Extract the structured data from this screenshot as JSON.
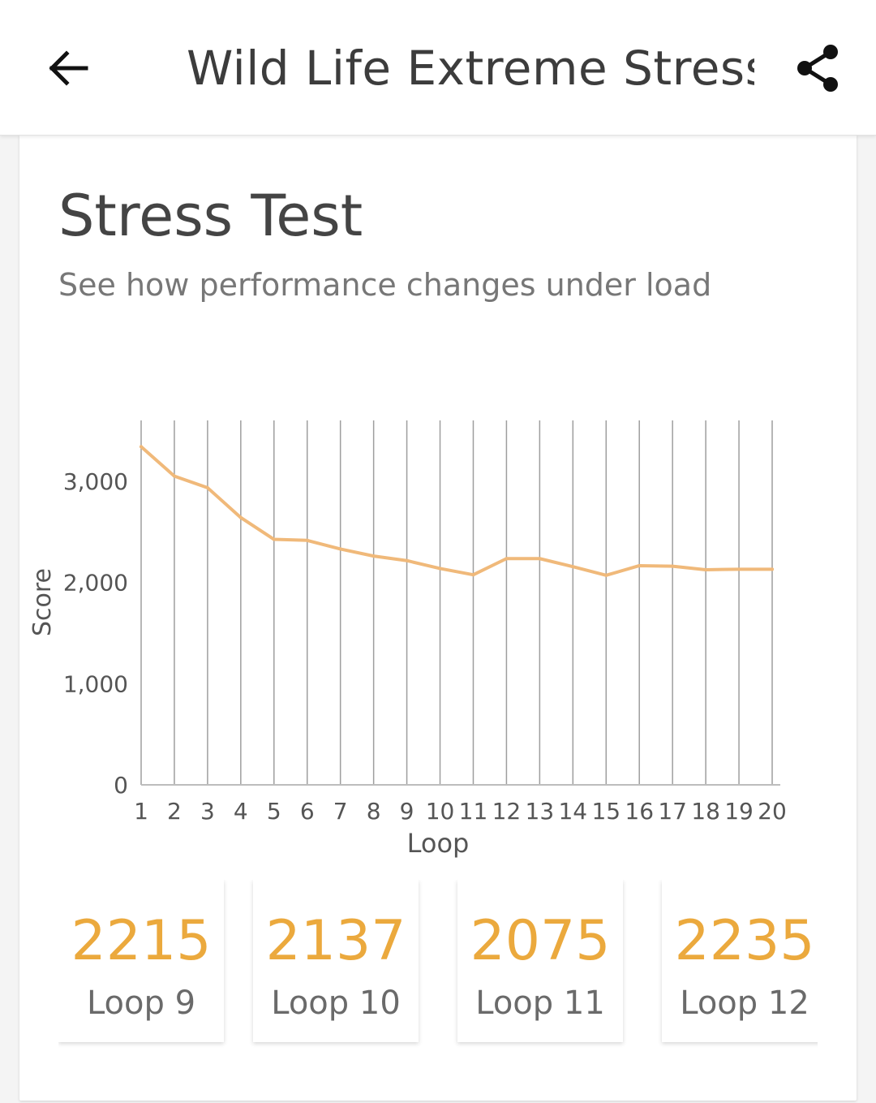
{
  "header": {
    "title": "Wild Life Extreme Stress...",
    "back_icon": "back-arrow-icon",
    "share_icon": "share-icon"
  },
  "card": {
    "title": "Stress Test",
    "subtitle": "See how performance changes under load"
  },
  "colors": {
    "line": "#f0b97a",
    "accent": "#eba93d",
    "grid": "#9e9e9e"
  },
  "chart_data": {
    "type": "line",
    "xlabel": "Loop",
    "ylabel": "Score",
    "x": [
      1,
      2,
      3,
      4,
      5,
      6,
      7,
      8,
      9,
      10,
      11,
      12,
      13,
      14,
      15,
      16,
      17,
      18,
      19,
      20
    ],
    "series": [
      {
        "values": [
          3340,
          3050,
          2935,
          2640,
          2425,
          2415,
          2330,
          2260,
          2215,
          2137,
          2075,
          2235,
          2235,
          2155,
          2070,
          2165,
          2160,
          2125,
          2130,
          2130
        ]
      }
    ],
    "ylim": [
      0,
      3600
    ],
    "yticks": [
      0,
      1000,
      2000,
      3000
    ],
    "ytick_labels": [
      "0",
      "1,000",
      "2,000",
      "3,000"
    ],
    "grid": "vertical"
  },
  "loops": [
    {
      "score": "2215",
      "label": "Loop 9"
    },
    {
      "score": "2137",
      "label": "Loop 10"
    },
    {
      "score": "2075",
      "label": "Loop 11"
    },
    {
      "score": "2235",
      "label": "Loop 12"
    }
  ]
}
